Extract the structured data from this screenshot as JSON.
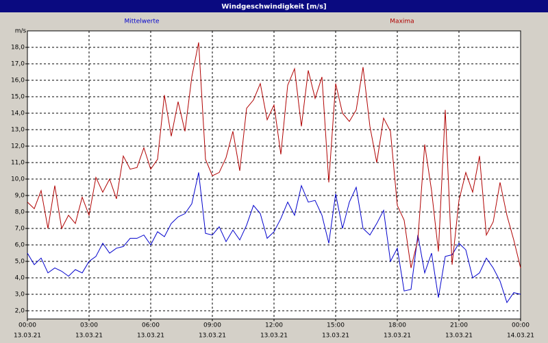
{
  "window_title": "Windgeschwindigkeit [m/s]",
  "chart_data": {
    "type": "line",
    "ylabel": "m/s",
    "x": [
      0,
      20,
      40,
      60,
      80,
      100,
      120,
      140,
      160,
      180,
      200,
      220,
      240,
      260,
      280,
      300,
      320,
      340,
      360,
      380,
      400,
      420,
      440,
      460,
      480,
      500,
      520,
      540,
      560,
      580,
      600,
      620,
      640,
      660,
      680,
      700,
      720,
      740,
      760,
      780,
      800,
      820,
      840,
      860,
      880,
      900,
      920,
      940,
      960,
      980,
      1000,
      1020,
      1040,
      1060,
      1080,
      1100,
      1120,
      1140,
      1160,
      1180,
      1200,
      1220,
      1240,
      1260,
      1280,
      1300,
      1320,
      1340,
      1360,
      1380,
      1400,
      1420,
      1440
    ],
    "series": [
      {
        "name": "Mittelwerte",
        "color": "#0000cc",
        "values": [
          5.5,
          4.8,
          5.2,
          4.3,
          4.6,
          4.4,
          4.1,
          4.5,
          4.3,
          5.0,
          5.3,
          6.1,
          5.5,
          5.8,
          5.9,
          6.4,
          6.4,
          6.6,
          6.0,
          6.8,
          6.5,
          7.3,
          7.7,
          7.9,
          8.5,
          10.4,
          6.7,
          6.6,
          7.1,
          6.2,
          6.9,
          6.3,
          7.2,
          8.4,
          7.9,
          6.4,
          6.8,
          7.6,
          8.6,
          7.8,
          9.6,
          8.6,
          8.7,
          7.8,
          6.1,
          9.1,
          7.0,
          8.6,
          9.5,
          7.0,
          6.6,
          7.3,
          8.1,
          5.0,
          5.8,
          3.2,
          3.3,
          6.6,
          4.3,
          5.5,
          2.8,
          5.3,
          5.4,
          6.1,
          5.7,
          4.0,
          4.3,
          5.2,
          4.6,
          3.8,
          2.5,
          3.1,
          3.0
        ]
      },
      {
        "name": "Maxima",
        "color": "#b00000",
        "values": [
          8.6,
          8.2,
          9.3,
          7.0,
          9.6,
          7.0,
          7.8,
          7.3,
          8.9,
          7.8,
          10.1,
          9.2,
          10.0,
          8.8,
          11.4,
          10.6,
          10.7,
          11.9,
          10.6,
          11.2,
          15.1,
          12.6,
          14.7,
          12.9,
          16.2,
          18.3,
          11.2,
          10.2,
          10.4,
          11.3,
          12.9,
          10.5,
          14.3,
          14.8,
          15.8,
          13.6,
          14.5,
          11.5,
          15.7,
          16.7,
          13.2,
          16.6,
          14.9,
          16.2,
          9.8,
          15.8,
          14.0,
          13.5,
          14.2,
          16.8,
          13.2,
          11.0,
          13.7,
          12.9,
          8.4,
          7.5,
          4.6,
          6.3,
          12.1,
          9.3,
          5.6,
          14.2,
          4.8,
          8.7,
          10.4,
          9.2,
          11.4,
          6.6,
          7.4,
          9.8,
          7.8,
          6.3,
          4.6
        ]
      }
    ],
    "xlim": [
      0,
      1440
    ],
    "xticks": [
      {
        "value": 0,
        "label": "00:00"
      },
      {
        "value": 180,
        "label": "03:00"
      },
      {
        "value": 360,
        "label": "06:00"
      },
      {
        "value": 540,
        "label": "09:00"
      },
      {
        "value": 720,
        "label": "12:00"
      },
      {
        "value": 900,
        "label": "15:00"
      },
      {
        "value": 1080,
        "label": "18:00"
      },
      {
        "value": 1260,
        "label": "21:00"
      },
      {
        "value": 1440,
        "label": "00:00"
      }
    ],
    "xtick_dates": [
      "13.03.21",
      "13.03.21",
      "13.03.21",
      "13.03.21",
      "13.03.21",
      "13.03.21",
      "13.03.21",
      "13.03.21",
      "14.03.21"
    ],
    "ylim": [
      1.5,
      19
    ],
    "yticks": [
      {
        "value": 2,
        "label": "2,0"
      },
      {
        "value": 3,
        "label": "3,0"
      },
      {
        "value": 4,
        "label": "4,0"
      },
      {
        "value": 5,
        "label": "5,0"
      },
      {
        "value": 6,
        "label": "6,0"
      },
      {
        "value": 7,
        "label": "7,0"
      },
      {
        "value": 8,
        "label": "8,0"
      },
      {
        "value": 9,
        "label": "9,0"
      },
      {
        "value": 10,
        "label": "10,0"
      },
      {
        "value": 11,
        "label": "11,0"
      },
      {
        "value": 12,
        "label": "12,0"
      },
      {
        "value": 13,
        "label": "13,0"
      },
      {
        "value": 14,
        "label": "14,0"
      },
      {
        "value": 15,
        "label": "15,0"
      },
      {
        "value": 16,
        "label": "16,0"
      },
      {
        "value": 17,
        "label": "17,0"
      },
      {
        "value": 18,
        "label": "18,0"
      }
    ],
    "grid": true
  }
}
